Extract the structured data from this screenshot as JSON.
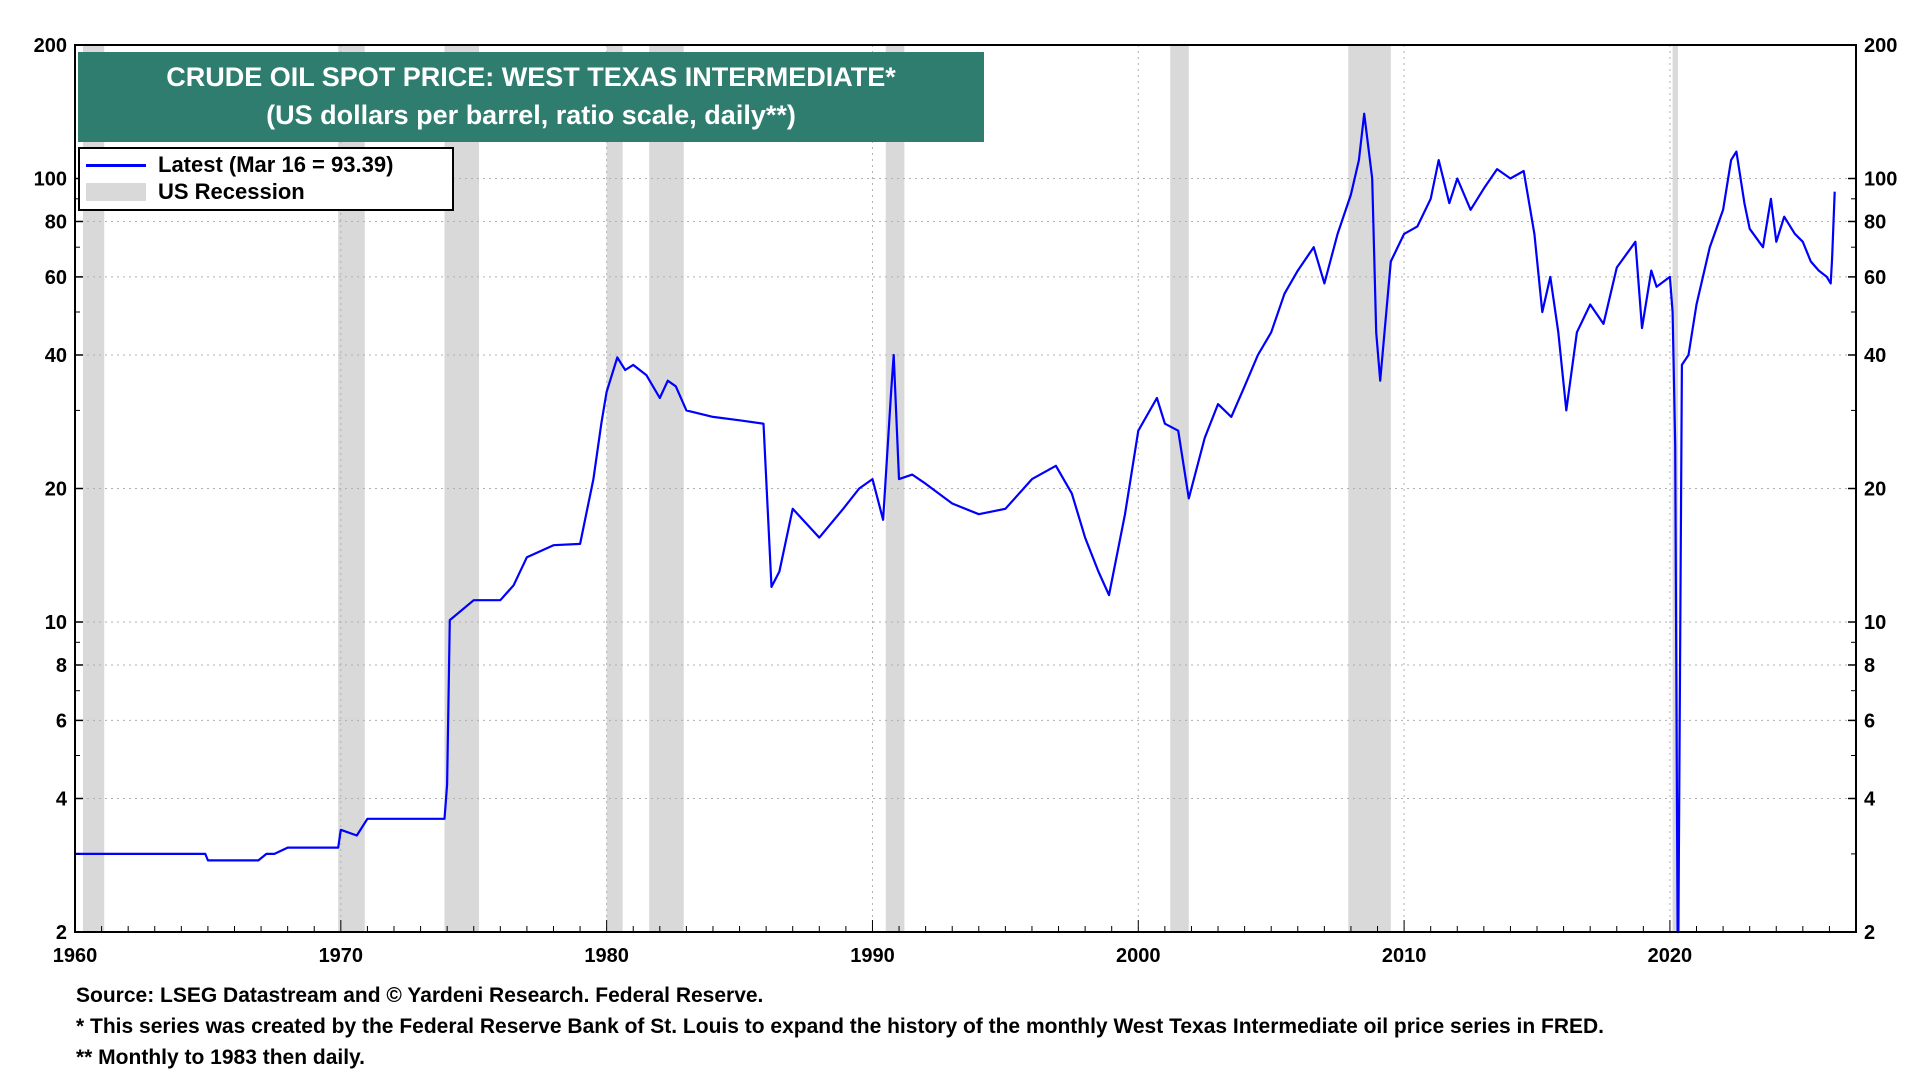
{
  "chart_data": {
    "type": "line",
    "title": "CRUDE OIL SPOT PRICE: WEST TEXAS INTERMEDIATE*",
    "subtitle": "(US dollars per barrel, ratio scale, daily**)",
    "x_scale": "time (years)",
    "y_scale": "log",
    "xlim": [
      1960,
      2027
    ],
    "ylim": [
      2,
      200
    ],
    "x_ticks": [
      "1960",
      "1970",
      "1980",
      "1990",
      "2000",
      "2010",
      "2020"
    ],
    "y_ticks": [
      "2",
      "4",
      "6",
      "8",
      "10",
      "20",
      "40",
      "60",
      "80",
      "100",
      "200"
    ],
    "grid": true,
    "legend_placement": "top-left",
    "legend": {
      "latest_label": "Latest (Mar 16 = 93.39)",
      "recession_label": "US Recession"
    },
    "colors": {
      "series": "#0000ff",
      "recession": "#d9d9d9",
      "title_bg": "#2e7d6e"
    },
    "recessions": [
      [
        1960.3,
        1961.1
      ],
      [
        1969.9,
        1970.9
      ],
      [
        1973.9,
        1975.2
      ],
      [
        1980.0,
        1980.6
      ],
      [
        1981.6,
        1982.9
      ],
      [
        1990.5,
        1991.2
      ],
      [
        2001.2,
        2001.9
      ],
      [
        2007.9,
        2009.5
      ],
      [
        2020.1,
        2020.3
      ]
    ],
    "series": [
      {
        "name": "Latest (Mar 16 = 93.39)",
        "x": [
          1960.0,
          1964.9,
          1965.0,
          1966.9,
          1967.2,
          1967.5,
          1968.0,
          1969.9,
          1970.0,
          1970.6,
          1971.0,
          1973.9,
          1974.0,
          1974.1,
          1975.0,
          1976.0,
          1976.5,
          1977.0,
          1978.0,
          1979.0,
          1979.5,
          1979.8,
          1980.0,
          1980.4,
          1980.7,
          1981.0,
          1981.5,
          1982.0,
          1982.3,
          1982.6,
          1983.0,
          1984.0,
          1985.0,
          1985.9,
          1986.2,
          1986.5,
          1987.0,
          1988.0,
          1988.9,
          1989.5,
          1990.0,
          1990.4,
          1990.7,
          1990.8,
          1991.0,
          1991.5,
          1992.0,
          1993.0,
          1994.0,
          1995.0,
          1996.0,
          1996.9,
          1997.5,
          1998.0,
          1998.5,
          1998.9,
          1999.5,
          2000.0,
          2000.7,
          2001.0,
          2001.5,
          2001.9,
          2002.5,
          2003.0,
          2003.5,
          2004.0,
          2004.5,
          2005.0,
          2005.5,
          2006.0,
          2006.6,
          2007.0,
          2007.5,
          2008.0,
          2008.3,
          2008.5,
          2008.8,
          2008.95,
          2009.1,
          2009.5,
          2010.0,
          2010.5,
          2011.0,
          2011.3,
          2011.7,
          2012.0,
          2012.5,
          2013.0,
          2013.5,
          2014.0,
          2014.5,
          2014.9,
          2015.2,
          2015.5,
          2015.8,
          2016.1,
          2016.5,
          2017.0,
          2017.5,
          2018.0,
          2018.7,
          2018.95,
          2019.3,
          2019.5,
          2020.0,
          2020.1,
          2020.2,
          2020.29,
          2020.32,
          2020.45,
          2020.7,
          2021.0,
          2021.5,
          2022.0,
          2022.3,
          2022.5,
          2022.8,
          2023.0,
          2023.5,
          2023.8,
          2024.0,
          2024.3,
          2024.7,
          2025.0,
          2025.3,
          2025.6,
          2025.9,
          2026.05,
          2026.1,
          2026.2
        ],
        "y": [
          3.0,
          3.0,
          2.9,
          2.9,
          3.0,
          3.0,
          3.1,
          3.1,
          3.4,
          3.3,
          3.6,
          3.6,
          4.3,
          10.1,
          11.2,
          11.2,
          12.1,
          14.0,
          14.9,
          15.0,
          21.0,
          28.0,
          33.0,
          39.5,
          37.0,
          38.0,
          36.0,
          32.0,
          35.0,
          34.0,
          30.0,
          29.0,
          28.5,
          28.0,
          12.0,
          13.0,
          18.0,
          15.5,
          18.0,
          20.0,
          21.0,
          17.0,
          33.0,
          40.0,
          21.0,
          21.5,
          20.5,
          18.5,
          17.5,
          18.0,
          21.0,
          22.5,
          19.5,
          15.5,
          13.0,
          11.5,
          17.5,
          27.0,
          32.0,
          28.0,
          27.0,
          19.0,
          26.0,
          31.0,
          29.0,
          34.0,
          40.0,
          45.0,
          55.0,
          62.0,
          70.0,
          58.0,
          75.0,
          92.0,
          110.0,
          140.0,
          100.0,
          45.0,
          35.0,
          65.0,
          75.0,
          78.0,
          90.0,
          110.0,
          88.0,
          100.0,
          85.0,
          95.0,
          105.0,
          100.0,
          104.0,
          75.0,
          50.0,
          60.0,
          45.0,
          30.0,
          45.0,
          52.0,
          47.0,
          63.0,
          72.0,
          46.0,
          62.0,
          57.0,
          60.0,
          50.0,
          25.0,
          2.0,
          2.0,
          38.0,
          40.0,
          52.0,
          70.0,
          85.0,
          110.0,
          115.0,
          88.0,
          77.0,
          70.0,
          90.0,
          72.0,
          82.0,
          75.0,
          72.0,
          65.0,
          62.0,
          60.0,
          58.0,
          66.0,
          93.39
        ]
      }
    ]
  },
  "footnotes": {
    "source": "Source: LSEG Datastream and © Yardeni Research. Federal Reserve.",
    "note1": "* This series was created by the Federal Reserve Bank of St. Louis to expand the history of the monthly West Texas Intermediate oil price series in FRED.",
    "note2": "** Monthly to 1983 then daily."
  }
}
